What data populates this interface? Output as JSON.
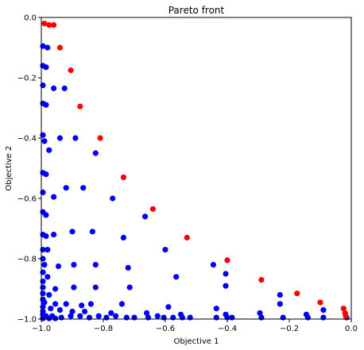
{
  "chart_data": {
    "type": "scatter",
    "title": "Pareto front",
    "xlabel": "Objective 1",
    "ylabel": "Objective 2",
    "xlim": [
      -1.0,
      0.0
    ],
    "ylim": [
      -1.0,
      0.0
    ],
    "x_ticks": [
      -1.0,
      -0.8,
      -0.6,
      -0.4,
      -0.2,
      0.0
    ],
    "y_ticks": [
      0.0,
      -0.2,
      -0.4,
      -0.6,
      -0.8,
      -1.0
    ],
    "x_tick_labels": [
      "−1.0",
      "−0.8",
      "−0.6",
      "−0.4",
      "−0.2",
      "0.0"
    ],
    "y_tick_labels": [
      "0.0",
      "−0.2",
      "−0.4",
      "−0.6",
      "−0.8",
      "−1.0"
    ],
    "grid": false,
    "series": [
      {
        "color": "#0000ff",
        "points": [
          [
            -0.995,
            -0.095
          ],
          [
            -0.98,
            -0.1
          ],
          [
            -0.995,
            -0.16
          ],
          [
            -0.985,
            -0.165
          ],
          [
            -0.995,
            -0.225
          ],
          [
            -0.96,
            -0.235
          ],
          [
            -0.925,
            -0.235
          ],
          [
            -0.995,
            -0.285
          ],
          [
            -0.985,
            -0.29
          ],
          [
            -0.995,
            -0.39
          ],
          [
            -0.99,
            -0.41
          ],
          [
            -0.975,
            -0.44
          ],
          [
            -0.94,
            -0.4
          ],
          [
            -0.89,
            -0.4
          ],
          [
            -0.825,
            -0.45
          ],
          [
            -0.995,
            -0.515
          ],
          [
            -0.985,
            -0.52
          ],
          [
            -0.995,
            -0.58
          ],
          [
            -0.96,
            -0.595
          ],
          [
            -0.92,
            -0.565
          ],
          [
            -0.865,
            -0.565
          ],
          [
            -0.77,
            -0.6
          ],
          [
            -0.995,
            -0.645
          ],
          [
            -0.985,
            -0.655
          ],
          [
            -0.665,
            -0.66
          ],
          [
            -0.995,
            -0.72
          ],
          [
            -0.985,
            -0.725
          ],
          [
            -0.96,
            -0.72
          ],
          [
            -0.9,
            -0.71
          ],
          [
            -0.835,
            -0.71
          ],
          [
            -0.735,
            -0.73
          ],
          [
            -0.995,
            -0.77
          ],
          [
            -0.98,
            -0.77
          ],
          [
            -0.6,
            -0.77
          ],
          [
            -0.995,
            -0.8
          ],
          [
            -0.99,
            -0.82
          ],
          [
            -0.945,
            -0.825
          ],
          [
            -0.895,
            -0.82
          ],
          [
            -0.825,
            -0.82
          ],
          [
            -0.72,
            -0.83
          ],
          [
            -0.445,
            -0.82
          ],
          [
            -0.995,
            -0.845
          ],
          [
            -0.98,
            -0.86
          ],
          [
            -0.565,
            -0.86
          ],
          [
            -0.405,
            -0.85
          ],
          [
            -0.995,
            -0.875
          ],
          [
            -0.995,
            -0.895
          ],
          [
            -0.955,
            -0.9
          ],
          [
            -0.895,
            -0.895
          ],
          [
            -0.825,
            -0.895
          ],
          [
            -0.715,
            -0.895
          ],
          [
            -0.405,
            -0.89
          ],
          [
            -0.23,
            -0.92
          ],
          [
            -0.995,
            -0.915
          ],
          [
            -0.975,
            -0.92
          ],
          [
            -0.995,
            -0.935
          ],
          [
            -0.99,
            -0.945
          ],
          [
            -0.955,
            -0.95
          ],
          [
            -0.92,
            -0.95
          ],
          [
            -0.87,
            -0.955
          ],
          [
            -0.84,
            -0.95
          ],
          [
            -0.74,
            -0.95
          ],
          [
            -0.59,
            -0.96
          ],
          [
            -0.435,
            -0.965
          ],
          [
            -0.23,
            -0.95
          ],
          [
            -0.995,
            -0.96
          ],
          [
            -0.97,
            -0.965
          ],
          [
            -0.995,
            -0.975
          ],
          [
            -0.94,
            -0.97
          ],
          [
            -0.9,
            -0.975
          ],
          [
            -0.86,
            -0.975
          ],
          [
            -0.775,
            -0.98
          ],
          [
            -0.66,
            -0.98
          ],
          [
            -0.55,
            -0.985
          ],
          [
            -0.405,
            -0.985
          ],
          [
            -0.295,
            -0.98
          ],
          [
            -0.145,
            -0.985
          ],
          [
            -0.09,
            -0.97
          ],
          [
            -0.995,
            -0.985
          ],
          [
            -0.985,
            -0.99
          ],
          [
            -0.965,
            -0.99
          ],
          [
            -0.935,
            -0.995
          ],
          [
            -0.905,
            -0.99
          ],
          [
            -0.875,
            -0.99
          ],
          [
            -0.845,
            -0.995
          ],
          [
            -0.815,
            -0.99
          ],
          [
            -0.79,
            -0.995
          ],
          [
            -0.76,
            -0.99
          ],
          [
            -0.725,
            -0.995
          ],
          [
            -0.7,
            -0.995
          ],
          [
            -0.655,
            -0.995
          ],
          [
            -0.625,
            -0.99
          ],
          [
            -0.605,
            -0.995
          ],
          [
            -0.575,
            -0.995
          ],
          [
            -0.545,
            -0.995
          ],
          [
            -0.52,
            -0.995
          ],
          [
            -0.435,
            -0.995
          ],
          [
            -0.4,
            -0.995
          ],
          [
            -0.385,
            -0.995
          ],
          [
            -0.29,
            -0.995
          ],
          [
            -0.22,
            -0.995
          ],
          [
            -0.14,
            -0.995
          ],
          [
            -0.09,
            -0.995
          ],
          [
            -0.015,
            -0.995
          ],
          [
            -0.995,
            -0.998
          ],
          [
            -0.975,
            -0.998
          ],
          [
            -0.955,
            -0.998
          ]
        ]
      },
      {
        "color": "#ff0000",
        "points": [
          [
            -0.99,
            -0.02
          ],
          [
            -0.975,
            -0.025
          ],
          [
            -0.96,
            -0.025
          ],
          [
            -0.94,
            -0.1
          ],
          [
            -0.905,
            -0.175
          ],
          [
            -0.875,
            -0.295
          ],
          [
            -0.81,
            -0.4
          ],
          [
            -0.735,
            -0.53
          ],
          [
            -0.64,
            -0.635
          ],
          [
            -0.53,
            -0.73
          ],
          [
            -0.4,
            -0.805
          ],
          [
            -0.29,
            -0.87
          ],
          [
            -0.175,
            -0.915
          ],
          [
            -0.1,
            -0.945
          ],
          [
            -0.025,
            -0.965
          ],
          [
            -0.02,
            -0.98
          ],
          [
            -0.018,
            -0.99
          ]
        ]
      }
    ]
  }
}
